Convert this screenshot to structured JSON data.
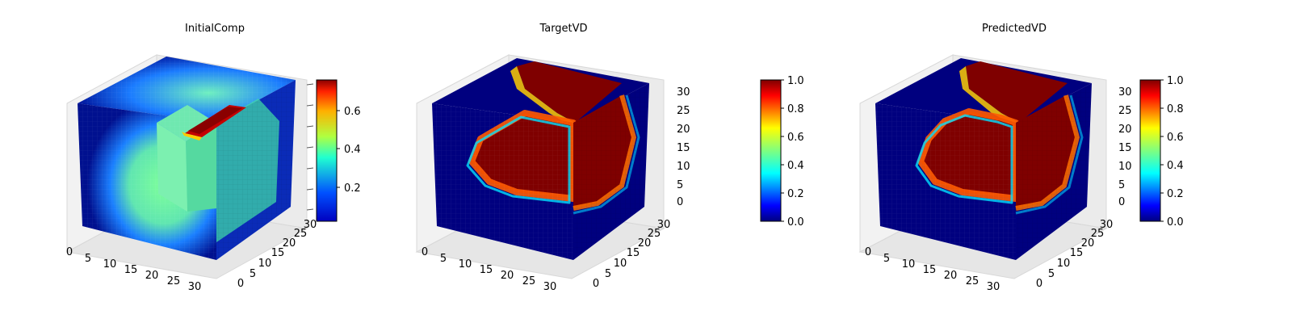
{
  "colormap": "jet",
  "colormap_stops": [
    "#00007f",
    "#0000ff",
    "#007fff",
    "#00ffff",
    "#7fff7f",
    "#ffff00",
    "#ff7f00",
    "#ff0000",
    "#7f0000"
  ],
  "chart_data": [
    {
      "type": "heatmap",
      "subtype": "3d-voxel",
      "title": "InitialComp",
      "x_ticks": [
        "0",
        "5",
        "10",
        "15",
        "20",
        "25",
        "30"
      ],
      "y_ticks": [
        "0",
        "5",
        "10",
        "15",
        "20",
        "25",
        "30"
      ],
      "z_ticks": [
        "",
        "",
        "",
        "",
        "",
        "",
        ""
      ],
      "grid": true,
      "colorbar": {
        "ticks": [
          "0.2",
          "0.4",
          "0.6"
        ],
        "tick_values": [
          0.2,
          0.4,
          0.6
        ],
        "range": [
          0.03,
          0.75
        ]
      }
    },
    {
      "type": "heatmap",
      "subtype": "3d-voxel",
      "title": "TargetVD",
      "x_ticks": [
        "0",
        "5",
        "10",
        "15",
        "20",
        "25",
        "30"
      ],
      "y_ticks": [
        "0",
        "5",
        "10",
        "15",
        "20",
        "25",
        "30"
      ],
      "z_ticks": [
        "0",
        "5",
        "10",
        "15",
        "20",
        "25",
        "30"
      ],
      "grid": true,
      "colorbar": {
        "ticks": [
          "0.0",
          "0.2",
          "0.4",
          "0.6",
          "0.8",
          "1.0"
        ],
        "tick_values": [
          0,
          0.2,
          0.4,
          0.6,
          0.8,
          1.0
        ],
        "range": [
          0,
          1
        ]
      }
    },
    {
      "type": "heatmap",
      "subtype": "3d-voxel",
      "title": "PredictedVD",
      "x_ticks": [
        "0",
        "5",
        "10",
        "15",
        "20",
        "25",
        "30"
      ],
      "y_ticks": [
        "0",
        "5",
        "10",
        "15",
        "20",
        "25",
        "30"
      ],
      "z_ticks": [
        "0",
        "5",
        "10",
        "15",
        "20",
        "25",
        "30"
      ],
      "grid": true,
      "colorbar": {
        "ticks": [
          "0.0",
          "0.2",
          "0.4",
          "0.6",
          "0.8",
          "1.0"
        ],
        "tick_values": [
          0,
          0.2,
          0.4,
          0.6,
          0.8,
          1.0
        ],
        "range": [
          0,
          1
        ]
      }
    }
  ]
}
